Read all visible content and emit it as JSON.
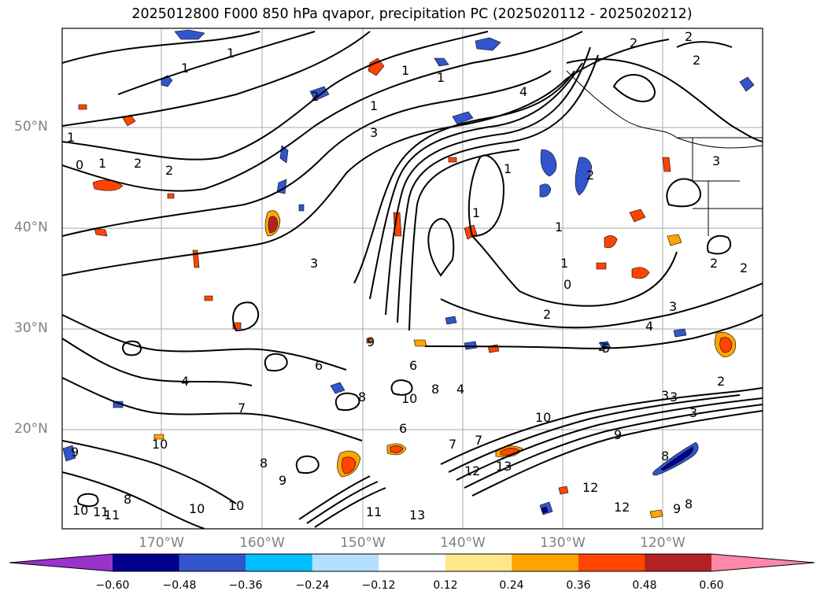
{
  "title": "2025012800 F000 850 hPa qvapor, precipitation PC (2025020112 - 2025020212)",
  "lat_labels": [
    "50°N",
    "40°N",
    "30°N",
    "20°N"
  ],
  "lon_labels": [
    "170°W",
    "160°W",
    "150°W",
    "140°W",
    "130°W",
    "120°W"
  ],
  "colorbar": {
    "ticks": [
      "−0.60",
      "−0.48",
      "−0.36",
      "−0.24",
      "−0.12",
      "0.12",
      "0.24",
      "0.36",
      "0.48",
      "0.60"
    ],
    "colors": [
      "#9933cc",
      "#00008b",
      "#3355cc",
      "#00bfff",
      "#b3e0ff",
      "#ffffff",
      "#ffe88a",
      "#ffa500",
      "#ff4500",
      "#b22222",
      "#ff88aa"
    ],
    "extend": "both"
  },
  "contour_labels": [
    "1",
    "1",
    "2",
    "2",
    "2",
    "1",
    "4",
    "1",
    "2",
    "1",
    "1",
    "2",
    "3",
    "1",
    "0",
    "1",
    "2",
    "1",
    "1",
    "2",
    "0",
    "1",
    "2",
    "3",
    "3",
    "2",
    "2",
    "2",
    "3",
    "4",
    "3",
    "5",
    "4",
    "3",
    "9",
    "8",
    "6",
    "4",
    "8",
    "6",
    "7",
    "6",
    "7",
    "9",
    "9",
    "10",
    "8",
    "10",
    "9",
    "8",
    "9",
    "13",
    "12",
    "13",
    "11",
    "10",
    "8",
    "11",
    "10",
    "10",
    "11",
    "8",
    "12",
    "12",
    "10",
    "2",
    "3",
    "7"
  ],
  "colors": {
    "grid": "#aaaaaa",
    "tick_text": "#808080"
  }
}
